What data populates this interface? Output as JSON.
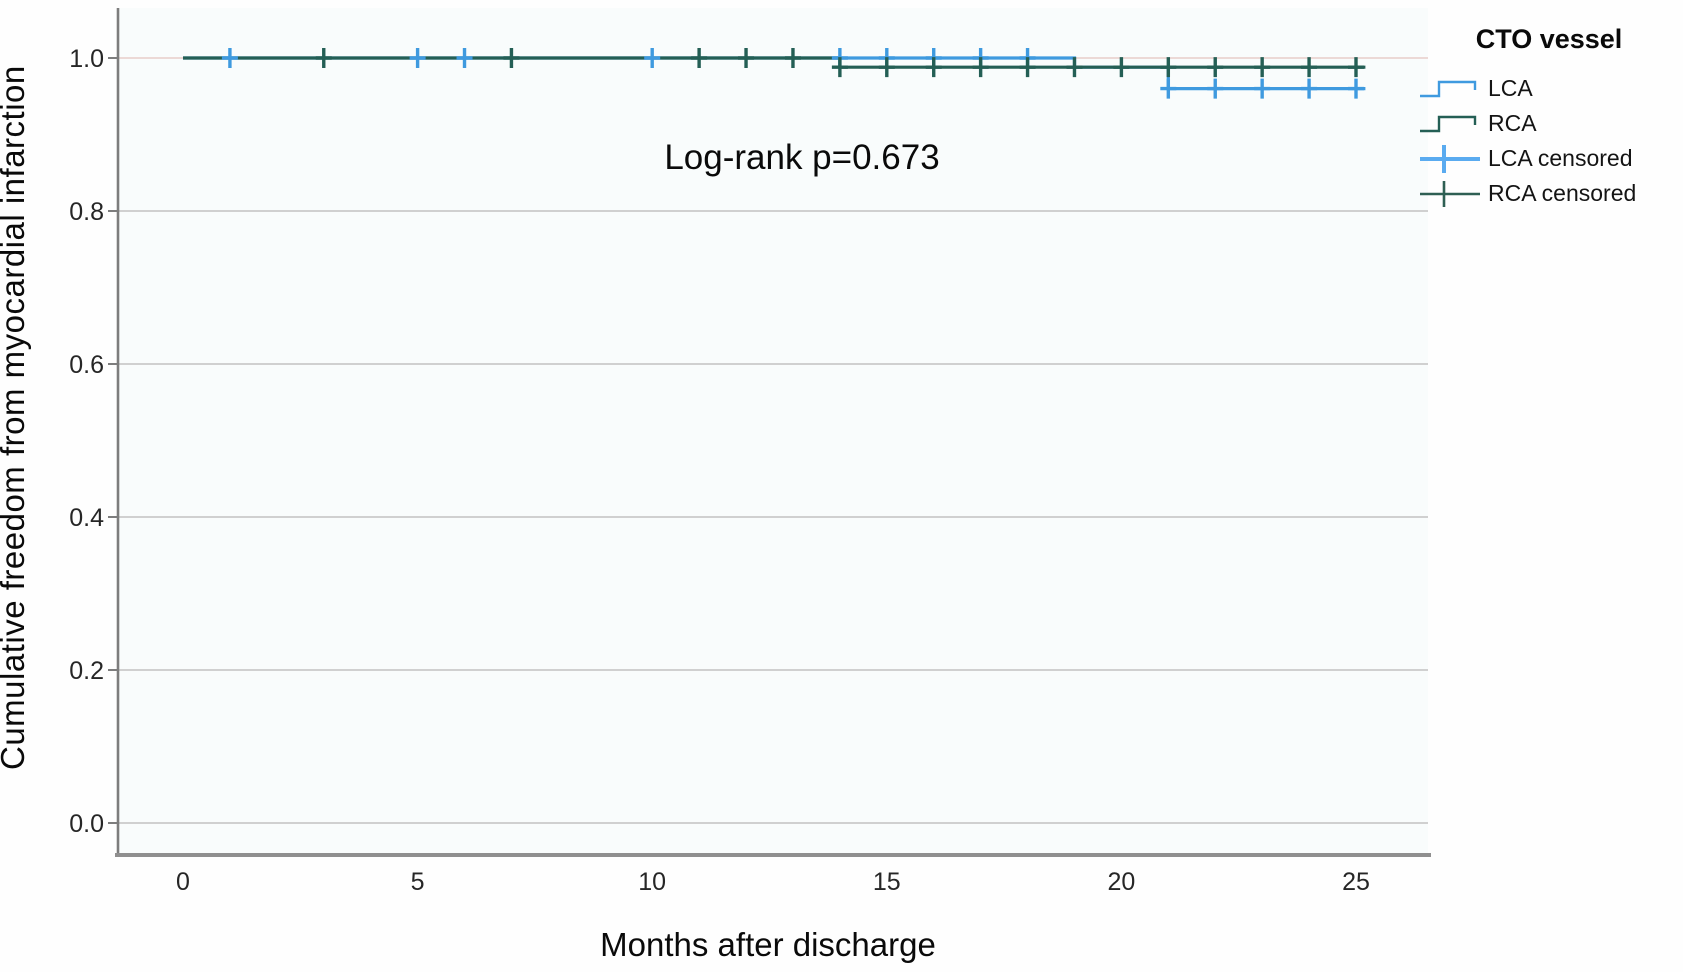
{
  "colors": {
    "lca": "#3f9adf",
    "rca": "#245f55",
    "lca_censored": "#5aabf0",
    "rca_censored": "#2e5f53",
    "grid": "#c2c2c2",
    "grid_top": "#e7cdc9",
    "axis_line": "#8f8f8f",
    "tick_text": "#262626",
    "plot_bg": "#f9fcfc"
  },
  "chart_data": {
    "type": "line",
    "step": "post",
    "title": "",
    "xlabel": "Months after discharge",
    "ylabel": "Cumulative freedom from myocardial infarction",
    "annotation": "Log-rank p=0.673",
    "xlim": [
      -1.4,
      26.6
    ],
    "ylim": [
      -0.042,
      1.065
    ],
    "x_ticks": [
      0,
      5,
      10,
      15,
      20,
      25
    ],
    "x_tick_labels": [
      "0",
      "5",
      "10",
      "15",
      "20",
      "25"
    ],
    "y_ticks": [
      0.0,
      0.2,
      0.4,
      0.6,
      0.8,
      1.0
    ],
    "y_tick_labels": [
      "0.0",
      "0.2",
      "0.4",
      "0.6",
      "0.8",
      "1.0"
    ],
    "grid": "horizontal",
    "legend_position": "right",
    "series": [
      {
        "name": "LCA",
        "steps": [
          [
            0,
            1.0
          ],
          [
            19,
            1.0
          ],
          [
            19,
            0.988
          ],
          [
            21,
            0.988
          ],
          [
            21,
            0.96
          ],
          [
            25.2,
            0.96
          ]
        ],
        "censored_at": [
          [
            1,
            1.0
          ],
          [
            5,
            1.0
          ],
          [
            6,
            1.0
          ],
          [
            10,
            1.0
          ],
          [
            14,
            1.0
          ],
          [
            15,
            1.0
          ],
          [
            16,
            1.0
          ],
          [
            17,
            1.0
          ],
          [
            18,
            1.0
          ],
          [
            21,
            0.96
          ],
          [
            22,
            0.96
          ],
          [
            23,
            0.96
          ],
          [
            24,
            0.96
          ],
          [
            25,
            0.96
          ]
        ]
      },
      {
        "name": "RCA",
        "steps": [
          [
            0,
            1.0
          ],
          [
            14,
            1.0
          ],
          [
            14,
            0.988
          ],
          [
            25.2,
            0.988
          ]
        ],
        "censored_at": [
          [
            3,
            1.0
          ],
          [
            7,
            1.0
          ],
          [
            11,
            1.0
          ],
          [
            12,
            1.0
          ],
          [
            13,
            1.0
          ],
          [
            14,
            0.988
          ],
          [
            15,
            0.988
          ],
          [
            16,
            0.988
          ],
          [
            17,
            0.988
          ],
          [
            18,
            0.988
          ],
          [
            19,
            0.988
          ],
          [
            20,
            0.988
          ],
          [
            21,
            0.988
          ],
          [
            22,
            0.988
          ],
          [
            23,
            0.988
          ],
          [
            24,
            0.988
          ],
          [
            25,
            0.988
          ]
        ]
      }
    ],
    "legend": {
      "title": "CTO vessel",
      "entries": [
        {
          "label": "LCA",
          "swatch": "step",
          "series": "LCA"
        },
        {
          "label": "RCA",
          "swatch": "step",
          "series": "RCA"
        },
        {
          "label": "LCA censored",
          "swatch": "cross",
          "series": "LCA"
        },
        {
          "label": "RCA censored",
          "swatch": "cross",
          "series": "RCA"
        }
      ]
    }
  }
}
